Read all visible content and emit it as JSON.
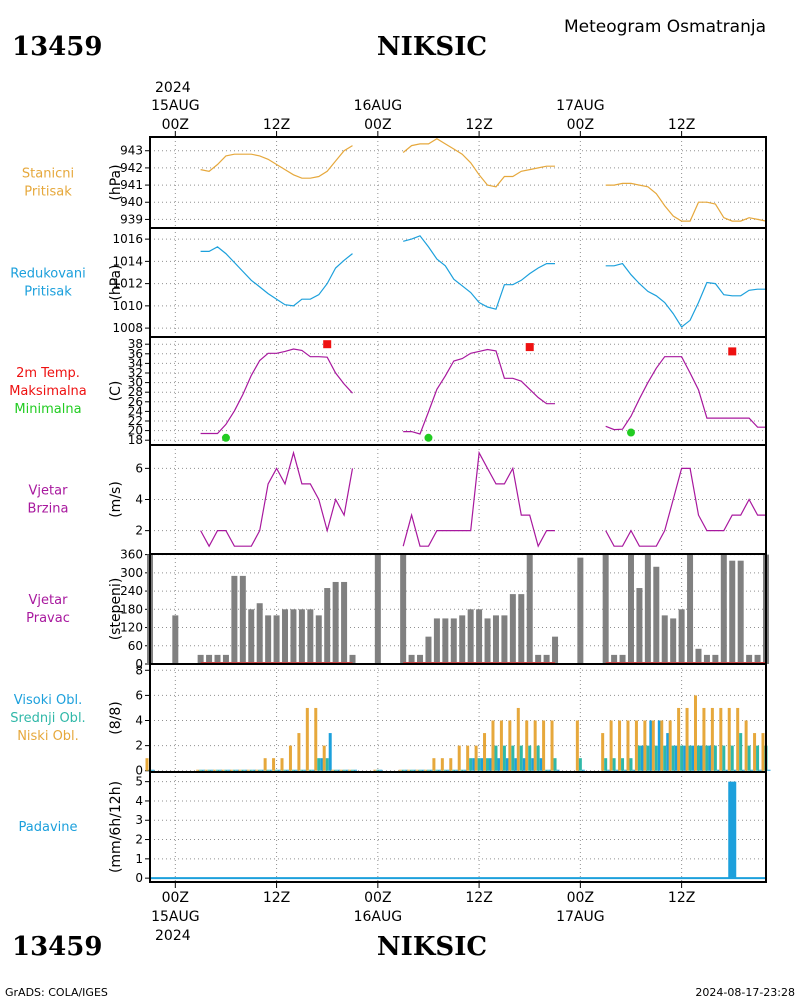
{
  "header": {
    "station_id": "13459",
    "station_name": "NIKSIC",
    "subtitle": "Meteogram Osmatranja",
    "year": "2024",
    "footer_left": "GrADS: COLA/IGES",
    "footer_right": "2024-08-17-23:28"
  },
  "time_axis": {
    "top_ticks": [
      {
        "x": 0,
        "top": "15AUG",
        "bottom": "00Z"
      },
      {
        "x": 12,
        "top": "",
        "bottom": "12Z"
      },
      {
        "x": 24,
        "top": "16AUG",
        "bottom": "00Z"
      },
      {
        "x": 36,
        "top": "",
        "bottom": "12Z"
      },
      {
        "x": 48,
        "top": "17AUG",
        "bottom": "00Z"
      },
      {
        "x": 60,
        "top": "",
        "bottom": "12Z"
      }
    ],
    "bottom_ticks": [
      {
        "x": 0,
        "label": "00Z",
        "date": "15AUG"
      },
      {
        "x": 12,
        "label": "12Z",
        "date": ""
      },
      {
        "x": 24,
        "label": "00Z",
        "date": "16AUG"
      },
      {
        "x": 36,
        "label": "12Z",
        "date": ""
      },
      {
        "x": 48,
        "label": "00Z",
        "date": "17AUG"
      },
      {
        "x": 60,
        "label": "12Z",
        "date": ""
      }
    ],
    "xlim": [
      -3,
      70
    ],
    "xunit": "hours since 15AUG 00Z"
  },
  "colors": {
    "station_pressure": "#e6a83c",
    "reduced_pressure": "#1ca0dc",
    "temperature": "#a8189e",
    "tmax": "#ee1111",
    "tmin": "#22cc22",
    "wind": "#a8189e",
    "wind_dir": "#808080",
    "wind_dir_base": "#c84040",
    "cloud_high": "#1ca0dc",
    "cloud_mid": "#30b8a8",
    "cloud_low": "#e6a83c",
    "precip": "#1ca0dc"
  },
  "chart_data": [
    {
      "type": "line",
      "id": "station_pressure",
      "labels": [
        "Stanicni",
        "Pritisak"
      ],
      "label_color": "#e6a83c",
      "ylabel": "(hPa)",
      "ylim": [
        938.5,
        943.8
      ],
      "yticks": [
        939,
        940,
        941,
        942,
        943
      ],
      "series": [
        {
          "x": [
            3,
            4,
            5,
            6,
            7,
            8,
            9,
            10,
            11,
            12,
            13,
            14,
            15,
            16,
            17,
            18,
            19,
            20,
            21
          ],
          "y": [
            941.9,
            941.8,
            942.2,
            942.7,
            942.8,
            942.8,
            942.8,
            942.7,
            942.5,
            942.2,
            941.9,
            941.6,
            941.4,
            941.4,
            941.5,
            941.8,
            942.4,
            943.0,
            943.3
          ]
        },
        {
          "x": [
            27,
            28,
            29,
            30,
            31,
            32,
            33,
            34,
            35,
            36,
            37,
            38,
            39,
            40,
            41,
            42,
            43,
            44,
            45
          ],
          "y": [
            942.9,
            943.3,
            943.4,
            943.4,
            943.7,
            943.4,
            943.1,
            942.8,
            942.3,
            941.6,
            941.0,
            940.9,
            941.5,
            941.5,
            941.8,
            941.9,
            942.0,
            942.1,
            942.1
          ]
        },
        {
          "x": [
            51,
            52,
            53,
            54,
            55,
            56,
            57,
            58,
            59,
            60,
            61,
            62,
            63,
            64,
            65,
            66,
            67,
            68,
            69,
            70
          ],
          "y": [
            941.0,
            941.0,
            941.1,
            941.1,
            941.0,
            940.9,
            940.5,
            939.8,
            939.2,
            938.9,
            938.9,
            940.0,
            940.0,
            939.9,
            939.1,
            938.9,
            938.9,
            939.1,
            939.0,
            938.9
          ]
        }
      ]
    },
    {
      "type": "line",
      "id": "reduced_pressure",
      "labels": [
        "Redukovani",
        "Pritisak"
      ],
      "label_color": "#1ca0dc",
      "ylabel": "(hPa)",
      "ylim": [
        1007.2,
        1017.0
      ],
      "yticks": [
        1008,
        1010,
        1012,
        1014,
        1016
      ],
      "series": [
        {
          "x": [
            3,
            4,
            5,
            6,
            7,
            8,
            9,
            10,
            11,
            12,
            13,
            14,
            15,
            16,
            17,
            18,
            19,
            20,
            21
          ],
          "y": [
            1014.9,
            1014.9,
            1015.3,
            1014.7,
            1013.9,
            1013.1,
            1012.3,
            1011.7,
            1011.1,
            1010.6,
            1010.1,
            1010.0,
            1010.6,
            1010.6,
            1011.0,
            1012.0,
            1013.4,
            1014.1,
            1014.7
          ]
        },
        {
          "x": [
            27,
            28,
            29,
            30,
            31,
            32,
            33,
            34,
            35,
            36,
            37,
            38,
            39,
            40,
            41,
            42,
            43,
            44,
            45
          ],
          "y": [
            1015.8,
            1016.0,
            1016.3,
            1015.3,
            1014.2,
            1013.6,
            1012.4,
            1011.8,
            1011.2,
            1010.3,
            1009.9,
            1009.7,
            1011.9,
            1011.9,
            1012.3,
            1012.9,
            1013.4,
            1013.8,
            1013.8
          ]
        },
        {
          "x": [
            51,
            52,
            53,
            54,
            55,
            56,
            57,
            58,
            59,
            60,
            61,
            62,
            63,
            64,
            65,
            66,
            67,
            68,
            69,
            70
          ],
          "y": [
            1013.6,
            1013.6,
            1013.8,
            1012.8,
            1012.0,
            1011.3,
            1010.9,
            1010.3,
            1009.3,
            1008.1,
            1008.7,
            1010.3,
            1012.1,
            1012.0,
            1011.0,
            1010.9,
            1010.9,
            1011.4,
            1011.5,
            1011.5
          ]
        }
      ]
    },
    {
      "type": "line",
      "id": "temperature",
      "labels": [
        "2m Temp.",
        "Maksimalna",
        "Minimalna"
      ],
      "label_colors": [
        "#ee1111",
        "#ee1111",
        "#22cc22"
      ],
      "ylabel": "(C)",
      "ylim": [
        17,
        39.5
      ],
      "yticks": [
        18,
        20,
        22,
        24,
        26,
        28,
        30,
        32,
        34,
        36,
        38
      ],
      "series": [
        {
          "x": [
            3,
            4,
            5,
            6,
            7,
            8,
            9,
            10,
            11,
            12,
            13,
            14,
            15,
            16,
            17,
            18,
            19,
            20,
            21
          ],
          "y": [
            19.4,
            19.4,
            19.4,
            21.3,
            24.1,
            27.5,
            31.5,
            34.6,
            36.1,
            36.1,
            36.5,
            37.0,
            36.7,
            35.4,
            35.4,
            35.3,
            32.0,
            29.7,
            27.8
          ]
        },
        {
          "x": [
            27,
            28,
            29,
            30,
            31,
            32,
            33,
            34,
            35,
            36,
            37,
            38,
            39,
            40,
            41,
            42,
            43,
            44,
            45
          ],
          "y": [
            19.8,
            19.8,
            19.3,
            23.9,
            28.6,
            31.4,
            34.5,
            35.0,
            36.1,
            36.5,
            36.9,
            36.6,
            30.9,
            30.9,
            30.3,
            28.6,
            26.9,
            25.6,
            25.6
          ]
        },
        {
          "x": [
            51,
            52,
            53,
            54,
            55,
            56,
            57,
            58,
            59,
            60,
            61,
            62,
            63,
            64,
            65,
            66,
            67,
            68,
            69,
            70
          ],
          "y": [
            20.9,
            20.2,
            20.3,
            23.0,
            26.6,
            30.0,
            33.0,
            35.4,
            35.4,
            35.4,
            32.0,
            28.5,
            22.6,
            22.6,
            22.6,
            22.6,
            22.6,
            22.6,
            20.7,
            20.7
          ]
        }
      ],
      "tmax": {
        "x": [
          18,
          42,
          66
        ],
        "y": [
          38.0,
          37.4,
          36.5
        ]
      },
      "tmin": {
        "x": [
          6,
          30,
          54
        ],
        "y": [
          18.5,
          18.5,
          19.6
        ]
      }
    },
    {
      "type": "line",
      "id": "wind_speed",
      "labels": [
        "Vjetar",
        "Brzina"
      ],
      "label_color": "#a8189e",
      "ylabel": "(m/s)",
      "ylim": [
        0.5,
        7.5
      ],
      "yticks": [
        2,
        4,
        6
      ],
      "series": [
        {
          "x": [
            3,
            4,
            5,
            6,
            7,
            8,
            9,
            10,
            11,
            12,
            13,
            14,
            15,
            16,
            17,
            18,
            19,
            20,
            21
          ],
          "y": [
            2,
            1,
            2,
            2,
            1,
            1,
            1,
            2,
            5,
            6,
            5,
            7,
            5,
            5,
            4,
            2,
            4,
            3,
            6
          ]
        },
        {
          "x": [
            27,
            28,
            29,
            30,
            31,
            32,
            33,
            34,
            35,
            36,
            37,
            38,
            39,
            40,
            41,
            42,
            43,
            44,
            45
          ],
          "y": [
            1,
            3,
            1,
            1,
            2,
            2,
            2,
            2,
            2,
            7,
            6,
            5,
            5,
            6,
            3,
            3,
            1,
            2,
            2
          ]
        },
        {
          "x": [
            51,
            52,
            53,
            54,
            55,
            56,
            57,
            58,
            59,
            60,
            61,
            62,
            63,
            64,
            65,
            66,
            67,
            68,
            69,
            70
          ],
          "y": [
            2,
            1,
            1,
            2,
            1,
            1,
            1,
            2,
            4,
            6,
            6,
            3,
            2,
            2,
            2,
            3,
            3,
            4,
            3,
            3
          ]
        }
      ]
    },
    {
      "type": "bar",
      "id": "wind_direction",
      "labels": [
        "Vjetar",
        "Pravac"
      ],
      "label_color": "#a8189e",
      "ylabel": "(stepeni)",
      "ylim": [
        0,
        362
      ],
      "yticks": [
        0,
        60,
        120,
        180,
        240,
        300,
        360
      ],
      "x": [
        -3,
        0,
        3,
        4,
        5,
        6,
        7,
        8,
        9,
        10,
        11,
        12,
        13,
        14,
        15,
        16,
        17,
        18,
        19,
        20,
        21,
        24,
        27,
        28,
        29,
        30,
        31,
        32,
        33,
        34,
        35,
        36,
        37,
        38,
        39,
        40,
        41,
        42,
        43,
        44,
        45,
        48,
        51,
        52,
        53,
        54,
        55,
        56,
        57,
        58,
        59,
        60,
        61,
        62,
        63,
        64,
        65,
        66,
        67,
        68,
        69,
        70
      ],
      "values": [
        360,
        160,
        30,
        30,
        30,
        30,
        290,
        290,
        180,
        200,
        160,
        160,
        180,
        180,
        180,
        180,
        160,
        250,
        270,
        270,
        30,
        360,
        360,
        30,
        30,
        90,
        150,
        150,
        150,
        160,
        180,
        180,
        150,
        160,
        160,
        230,
        230,
        360,
        30,
        30,
        90,
        350,
        360,
        30,
        30,
        360,
        250,
        360,
        320,
        160,
        150,
        180,
        360,
        50,
        30,
        30,
        360,
        340,
        340,
        30,
        30,
        360
      ],
      "baseline_x": [
        [
          3,
          21
        ],
        [
          27,
          45
        ],
        [
          51,
          70
        ]
      ]
    },
    {
      "type": "bar",
      "id": "clouds",
      "labels": [
        "Visoki Obl.",
        "Srednji Obl.",
        "Niski Obl."
      ],
      "label_colors": [
        "#1ca0dc",
        "#30b8a8",
        "#e6a83c"
      ],
      "ylabel": "(8/8)",
      "ylim": [
        -0.1,
        8.5
      ],
      "yticks": [
        0,
        2,
        4,
        6,
        8
      ],
      "x": [
        -3,
        3,
        4,
        5,
        6,
        7,
        8,
        9,
        10,
        11,
        12,
        13,
        14,
        15,
        16,
        17,
        18,
        19,
        20,
        21,
        24,
        27,
        28,
        29,
        30,
        31,
        32,
        33,
        34,
        35,
        36,
        37,
        38,
        39,
        40,
        41,
        42,
        43,
        44,
        45,
        48,
        51,
        52,
        53,
        54,
        55,
        56,
        57,
        58,
        59,
        60,
        61,
        62,
        63,
        64,
        65,
        66,
        67,
        68,
        69,
        70
      ],
      "series": [
        {
          "name": "Visoki Obl.",
          "values": [
            0,
            0,
            0,
            0,
            0,
            0,
            0,
            0,
            0,
            0,
            0,
            0,
            0,
            0,
            0,
            1,
            3,
            0,
            0,
            0,
            0,
            0,
            0,
            0,
            0,
            0,
            0,
            0,
            0,
            1,
            1,
            1,
            1,
            1,
            1,
            1,
            1,
            1,
            0,
            0,
            0,
            0,
            0,
            0,
            0,
            2,
            4,
            4,
            3,
            2,
            2,
            2,
            2,
            2,
            0,
            0,
            0,
            0,
            0,
            0,
            0
          ]
        },
        {
          "name": "Srednji Obl.",
          "values": [
            0,
            0,
            0,
            0,
            0,
            0,
            0,
            0,
            0,
            0,
            0,
            0,
            0,
            0,
            0,
            1,
            1,
            0,
            0,
            0,
            0,
            0,
            0,
            0,
            0,
            0,
            0,
            0,
            0,
            1,
            1,
            1,
            2,
            2,
            2,
            2,
            2,
            2,
            0,
            1,
            1,
            1,
            1,
            1,
            1,
            2,
            2,
            2,
            2,
            2,
            2,
            2,
            2,
            2,
            2,
            2,
            2,
            3,
            2,
            2,
            2
          ]
        },
        {
          "name": "Niski Obl.",
          "values": [
            1,
            0,
            0,
            0,
            0,
            0,
            0,
            0,
            0,
            1,
            1,
            1,
            2,
            3,
            5,
            5,
            2,
            0,
            0,
            0,
            0,
            0,
            0,
            0,
            0,
            1,
            1,
            1,
            2,
            2,
            2,
            3,
            4,
            4,
            4,
            5,
            4,
            4,
            4,
            4,
            4,
            3,
            4,
            4,
            4,
            4,
            4,
            4,
            4,
            4,
            5,
            5,
            6,
            5,
            5,
            5,
            5,
            5,
            4,
            3,
            3
          ]
        }
      ]
    },
    {
      "type": "bar",
      "id": "precipitation",
      "labels": [
        "Padavine"
      ],
      "label_color": "#1ca0dc",
      "ylabel": "(mm/6h/12h)",
      "ylim": [
        -0.2,
        5.5
      ],
      "yticks": [
        0,
        1,
        2,
        3,
        4,
        5
      ],
      "x": [
        66
      ],
      "values": [
        5.0
      ],
      "baseline_x": [
        [
          -3,
          70
        ]
      ]
    }
  ]
}
